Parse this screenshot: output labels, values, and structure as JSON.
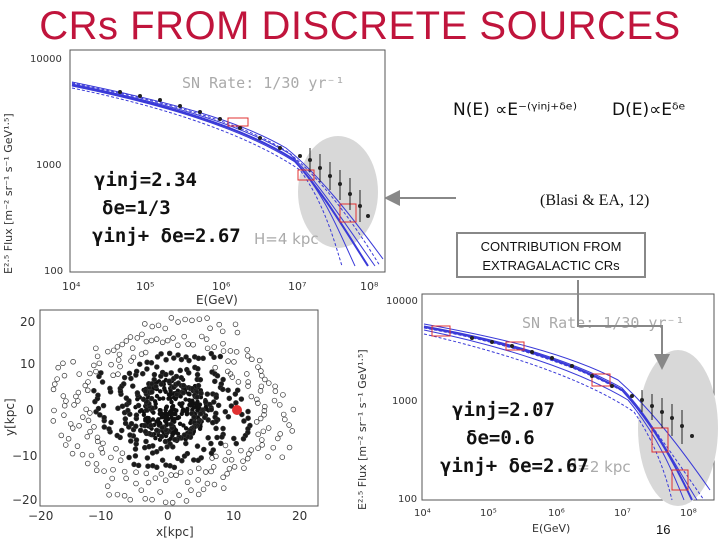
{
  "title": "CRs FROM DISCRETE SOURCES",
  "formula_flux": "N(E) ∝E⁻⁽ᵞⁱⁿʲ⁺ᵟᵉ⁾",
  "formula_diffusion": "D(E)∝Eᵟᵉ",
  "citation": "(Blasi & EA, 12)",
  "box_line1": "CONTRIBUTION FROM",
  "box_line2": "EXTRAGALACTIC CRs",
  "page_number": "16",
  "colors": {
    "title": "#c0143c",
    "model_lines": "#3a3ad8",
    "error_box": "#e03030",
    "highlight": "#d8d8d8"
  },
  "top_panel": {
    "ylabel": "E²·⁵ Flux [m⁻² sr⁻¹ s⁻¹ GeV¹·⁵]",
    "xlabel": "E(GeV)",
    "sn_rate": "SN Rate: 1/30 yr⁻¹",
    "halo": "H=4 kpc",
    "gamma": "γinj=2.34",
    "delta": "δe=1/3",
    "sum": "γinj+ δe=2.67",
    "yticks": [
      "10000",
      "1000",
      "100"
    ],
    "xticks": [
      "10⁴",
      "10⁵",
      "10⁶",
      "10⁷",
      "10⁸"
    ]
  },
  "bottom_panel": {
    "ylabel": "E²·⁵ Flux [m⁻² sr⁻¹ s⁻¹ GeV¹·⁵]",
    "xlabel": "E(GeV)",
    "sn_rate": "SN Rate: 1/30 yr⁻¹",
    "halo": "H=2 kpc",
    "gamma": "γinj=2.07",
    "delta": "δe=0.6",
    "sum": "γinj+ δe=2.67",
    "yticks": [
      "10000",
      "1000",
      "100"
    ],
    "xticks": [
      "10⁴",
      "10⁵",
      "10⁶",
      "10⁷",
      "10⁸"
    ]
  },
  "galaxy_panel": {
    "ylabel": "y[kpc]",
    "xlabel": "x[kpc]",
    "yticks": [
      "20",
      "10",
      "0",
      "−10",
      "−20"
    ],
    "xticks": [
      "−20",
      "−10",
      "0",
      "10",
      "20"
    ]
  }
}
